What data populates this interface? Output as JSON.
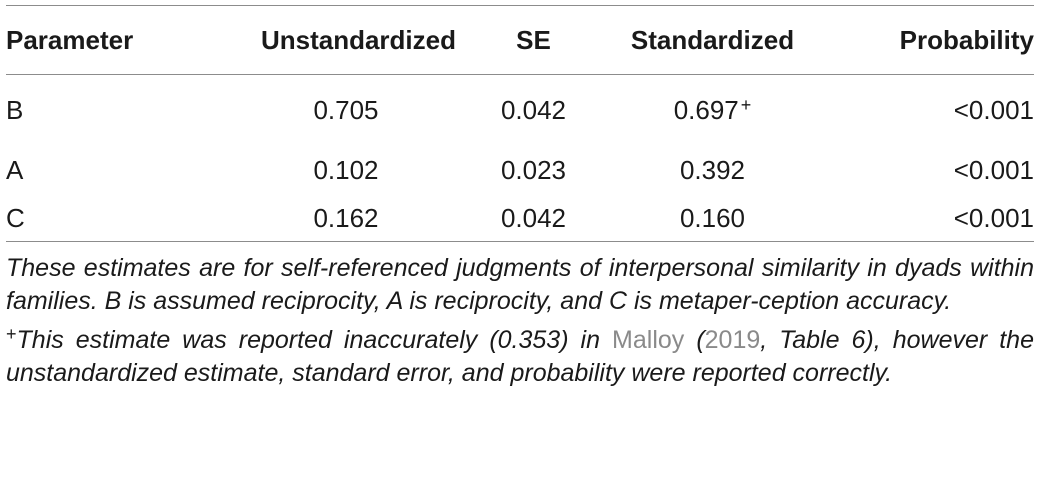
{
  "table": {
    "headers": [
      "Parameter",
      "Unstandardized",
      "SE",
      "Standardized",
      "Probability"
    ],
    "rows": [
      {
        "parameter": "B",
        "unstandardized": "0.705",
        "se": "0.042",
        "standardized": "0.697",
        "standardized_mark": "+",
        "probability": "<0.001"
      },
      {
        "parameter": "A",
        "unstandardized": "0.102",
        "se": "0.023",
        "standardized": "0.392",
        "probability": "<0.001"
      },
      {
        "parameter": "C",
        "unstandardized": "0.162",
        "se": "0.042",
        "standardized": "0.160",
        "probability": "<0.001"
      }
    ]
  },
  "footnotes": {
    "note1": "These estimates are for self-referenced judgments of interpersonal similarity in dyads within families. B is assumed reciprocity, A is reciprocity, and C is metaper-ception accuracy.",
    "note2_symbol": "+",
    "note2_part1": "This estimate was reported inaccurately (0.353) in ",
    "note2_ref_author": "Malloy",
    "note2_part2": " (",
    "note2_ref_year": "2019",
    "note2_part3": ", Table 6), however the unstandardized estimate, standard error, and probability were reported correctly."
  }
}
